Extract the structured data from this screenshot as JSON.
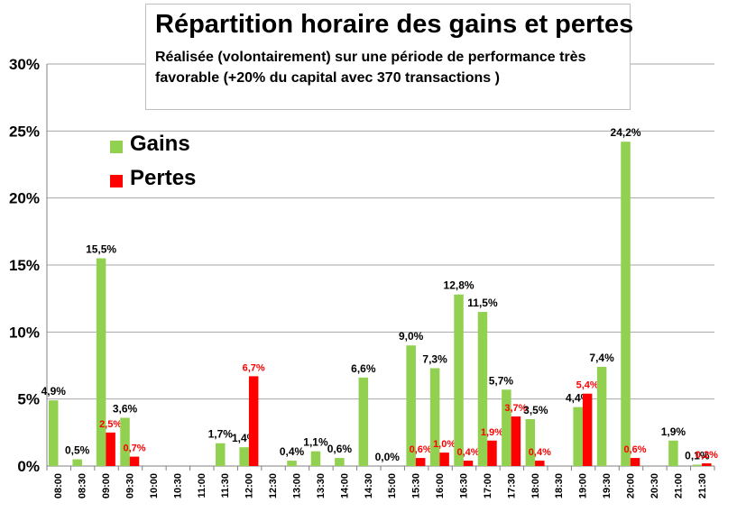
{
  "chart_data": {
    "type": "bar",
    "title": "Répartition horaire des gains et pertes",
    "subtitle": "Réalisée (volontairement) sur une période de performance très favorable (+20% du capital avec 370 transactions )",
    "ylim": [
      0,
      30
    ],
    "yticks": [
      0,
      5,
      10,
      15,
      20,
      25,
      30
    ],
    "ytick_labels": [
      "0%",
      "5%",
      "10%",
      "15%",
      "20%",
      "25%",
      "30%"
    ],
    "grid": true,
    "legend_position": "top-left",
    "categories": [
      "08:00",
      "08:30",
      "09:00",
      "09:30",
      "10:00",
      "10:30",
      "11:00",
      "11:30",
      "12:00",
      "12:30",
      "13:00",
      "13:30",
      "14:00",
      "14:30",
      "15:00",
      "15:30",
      "16:00",
      "16:30",
      "17:00",
      "17:30",
      "18:00",
      "18:30",
      "19:00",
      "19:30",
      "20:00",
      "20:30",
      "21:00",
      "21:30"
    ],
    "series": [
      {
        "name": "Gains",
        "color": "#92d050",
        "label_color": "#000000",
        "values": [
          4.9,
          0.5,
          15.5,
          3.6,
          null,
          null,
          null,
          1.7,
          1.4,
          null,
          0.4,
          1.1,
          0.6,
          6.6,
          0.0,
          9.0,
          7.3,
          12.8,
          11.5,
          5.7,
          3.5,
          null,
          4.4,
          7.4,
          24.2,
          null,
          1.9,
          0.1
        ],
        "labels": [
          "4,9%",
          "0,5%",
          "15,5%",
          "3,6%",
          null,
          null,
          null,
          "1,7%",
          "1,4%",
          null,
          "0,4%",
          "1,1%",
          "0,6%",
          "6,6%",
          "0,0%",
          "9,0%",
          "7,3%",
          "12,8%",
          "11,5%",
          "5,7%",
          "3,5%",
          null,
          "4,4%",
          "7,4%",
          "24,2%",
          null,
          "1,9%",
          "0,1%"
        ]
      },
      {
        "name": "Pertes",
        "color": "#ff0000",
        "label_color": "#ff0000",
        "values": [
          null,
          null,
          2.5,
          0.7,
          null,
          null,
          null,
          null,
          6.7,
          null,
          null,
          null,
          null,
          null,
          null,
          0.6,
          1.0,
          0.4,
          1.9,
          3.7,
          0.4,
          null,
          5.4,
          null,
          0.6,
          null,
          null,
          0.2
        ],
        "labels": [
          null,
          null,
          "2,5%",
          "0,7%",
          null,
          null,
          null,
          null,
          "6,7%",
          null,
          null,
          null,
          null,
          null,
          null,
          "0,6%",
          "1,0%",
          "0,4%",
          "1,9%",
          "3,7%",
          "0,4%",
          null,
          "5,4%",
          null,
          "0,6%",
          null,
          null,
          "0,2%"
        ]
      }
    ]
  }
}
